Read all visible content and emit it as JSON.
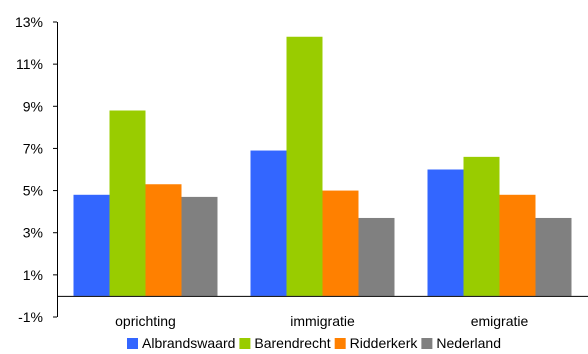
{
  "chart_data": {
    "type": "bar",
    "categories": [
      "oprichting",
      "immigratie",
      "emigratie"
    ],
    "series": [
      {
        "name": "Albrandswaard",
        "color": "#3366ff",
        "values": [
          4.8,
          6.9,
          6.0
        ]
      },
      {
        "name": "Barendrecht",
        "color": "#99cc00",
        "values": [
          8.8,
          12.3,
          6.6
        ]
      },
      {
        "name": "Ridderkerk",
        "color": "#ff8000",
        "values": [
          5.3,
          5.0,
          4.8
        ]
      },
      {
        "name": "Nederland",
        "color": "#808080",
        "values": [
          4.7,
          3.7,
          3.7
        ]
      }
    ],
    "ylim": [
      -1,
      13
    ],
    "yticks": [
      -1,
      1,
      3,
      5,
      7,
      9,
      11,
      13
    ],
    "ytick_labels": [
      "-1%",
      "1%",
      "3%",
      "5%",
      "7%",
      "9%",
      "11%",
      "13%"
    ],
    "baseline": 0,
    "title": "",
    "xlabel": "",
    "ylabel": "",
    "legend_position": "bottom",
    "grid": false
  }
}
